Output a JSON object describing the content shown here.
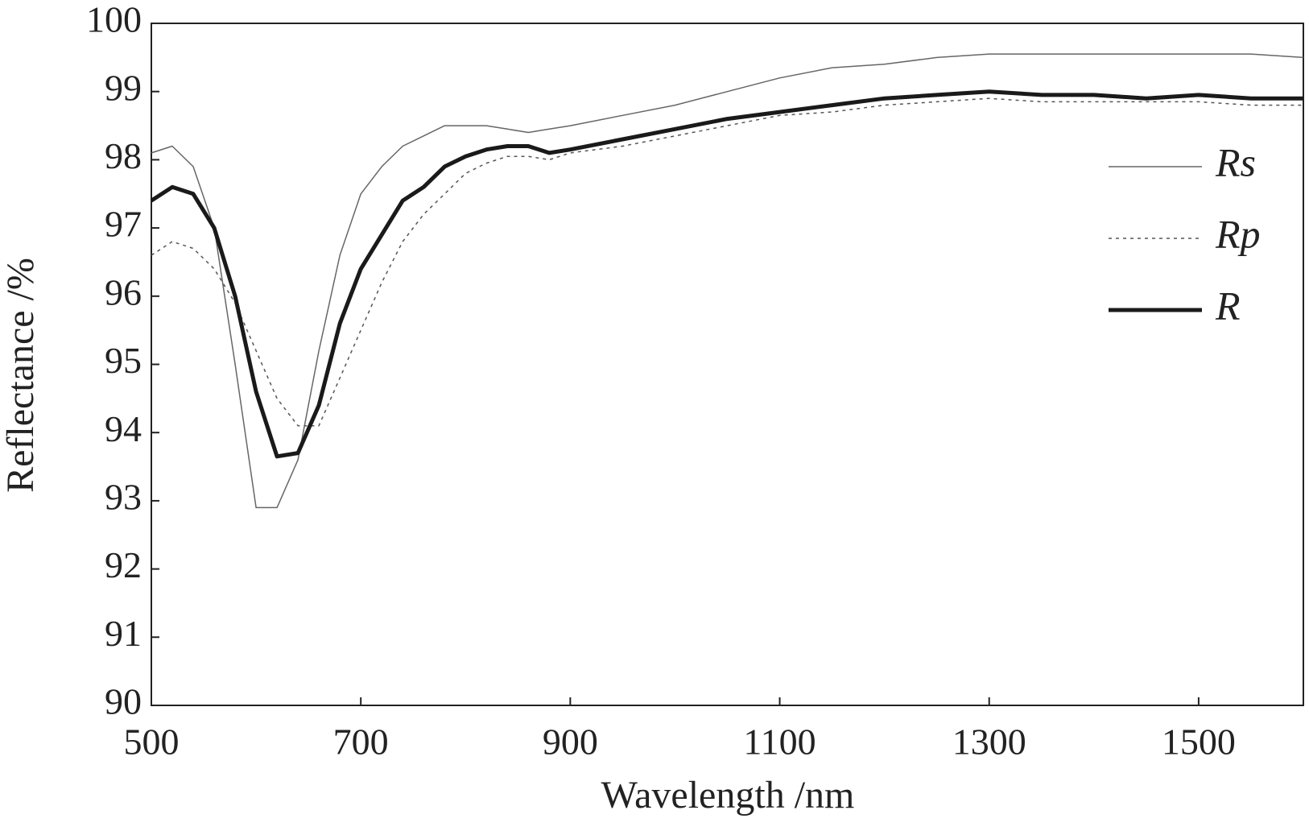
{
  "chart_data": {
    "type": "line",
    "x_label": "Wavelength /nm",
    "y_label": "Reflectance /%",
    "xlim": [
      500,
      1600
    ],
    "ylim": [
      90,
      100
    ],
    "xticks": [
      500,
      700,
      900,
      1100,
      1300,
      1500
    ],
    "yticks": [
      90,
      91,
      92,
      93,
      94,
      95,
      96,
      97,
      98,
      99,
      100
    ],
    "grid": false,
    "legend": "right",
    "x": [
      500,
      520,
      540,
      560,
      580,
      600,
      620,
      640,
      660,
      680,
      700,
      720,
      740,
      760,
      780,
      800,
      820,
      840,
      860,
      880,
      900,
      950,
      1000,
      1050,
      1100,
      1150,
      1200,
      1250,
      1300,
      1350,
      1400,
      1450,
      1500,
      1550,
      1600
    ],
    "series": [
      {
        "name": "Rs",
        "color": "#666666",
        "line_style": "solid",
        "line_width": 1.5,
        "values": [
          98.1,
          98.2,
          97.9,
          97.0,
          95.0,
          92.9,
          92.9,
          93.6,
          95.2,
          96.6,
          97.5,
          97.9,
          98.2,
          98.35,
          98.5,
          98.5,
          98.5,
          98.45,
          98.4,
          98.45,
          98.5,
          98.65,
          98.8,
          99.0,
          99.2,
          99.35,
          99.4,
          99.5,
          99.55,
          99.55,
          99.55,
          99.55,
          99.55,
          99.55,
          99.5
        ]
      },
      {
        "name": "Rp",
        "color": "#555555",
        "line_style": "dotted",
        "line_width": 1.5,
        "values": [
          96.6,
          96.8,
          96.7,
          96.4,
          95.9,
          95.2,
          94.5,
          94.1,
          94.1,
          94.8,
          95.5,
          96.2,
          96.8,
          97.2,
          97.5,
          97.8,
          97.95,
          98.05,
          98.05,
          98.0,
          98.1,
          98.2,
          98.35,
          98.5,
          98.65,
          98.7,
          98.8,
          98.85,
          98.9,
          98.85,
          98.85,
          98.85,
          98.85,
          98.8,
          98.8
        ]
      },
      {
        "name": "R",
        "color": "#1a1a1a",
        "line_style": "solid",
        "line_width": 5,
        "values": [
          97.4,
          97.6,
          97.5,
          97.0,
          96.0,
          94.6,
          93.65,
          93.7,
          94.4,
          95.6,
          96.4,
          96.9,
          97.4,
          97.6,
          97.9,
          98.05,
          98.15,
          98.2,
          98.2,
          98.1,
          98.15,
          98.3,
          98.45,
          98.6,
          98.7,
          98.8,
          98.9,
          98.95,
          99.0,
          98.95,
          98.95,
          98.9,
          98.95,
          98.9,
          98.9
        ]
      }
    ]
  }
}
